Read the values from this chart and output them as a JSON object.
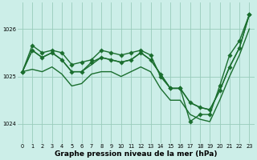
{
  "xlabel": "Graphe pression niveau de la mer (hPa)",
  "bg_color": "#cceee8",
  "grid_color": "#99ccbb",
  "line_color": "#1a6e2e",
  "xlim": [
    -0.5,
    23.5
  ],
  "ylim": [
    1023.6,
    1026.55
  ],
  "yticks": [
    1024,
    1025,
    1026
  ],
  "x_ticks": [
    0,
    1,
    2,
    3,
    4,
    5,
    6,
    7,
    8,
    9,
    10,
    11,
    12,
    13,
    14,
    15,
    16,
    17,
    18,
    19,
    20,
    21,
    22,
    23
  ],
  "series": [
    {
      "y": [
        1025.1,
        1025.65,
        1025.5,
        1025.55,
        1025.5,
        1025.25,
        1025.3,
        1025.35,
        1025.55,
        1025.5,
        1025.45,
        1025.5,
        1025.55,
        1025.45,
        1025.0,
        1024.75,
        1024.75,
        1024.05,
        1024.2,
        1024.2,
        1024.8,
        1025.45,
        1025.75,
        1026.3
      ],
      "marker": true,
      "lw": 1.0,
      "ls": "-"
    },
    {
      "y": [
        1025.1,
        1025.55,
        1025.4,
        1025.5,
        1025.35,
        1025.1,
        1025.1,
        1025.3,
        1025.4,
        1025.35,
        1025.3,
        1025.35,
        1025.5,
        1025.35,
        1025.05,
        1024.75,
        1024.75,
        1024.45,
        1024.35,
        1024.3,
        1024.7,
        1025.2,
        1025.6,
        1026.3
      ],
      "marker": true,
      "lw": 1.0,
      "ls": "-"
    },
    {
      "y": [
        1025.1,
        1025.55,
        1025.4,
        1025.5,
        1025.35,
        1025.1,
        1025.1,
        1025.25,
        1025.4,
        1025.35,
        1025.3,
        1025.35,
        1025.5,
        1025.35,
        1025.05,
        1024.75,
        1024.75,
        1024.45,
        1024.35,
        1024.3,
        1024.7,
        1025.2,
        1025.6,
        1026.3
      ],
      "marker": false,
      "lw": 1.0,
      "ls": "-"
    },
    {
      "y": [
        1025.1,
        1025.15,
        1025.1,
        1025.2,
        1025.05,
        1024.8,
        1024.85,
        1025.05,
        1025.1,
        1025.1,
        1025.0,
        1025.1,
        1025.2,
        1025.1,
        1024.75,
        1024.5,
        1024.5,
        1024.2,
        1024.1,
        1024.05,
        1024.5,
        1025.0,
        1025.45,
        1026.0
      ],
      "marker": false,
      "lw": 1.0,
      "ls": "-"
    }
  ],
  "marker_size": 2.8,
  "tick_fontsize": 4.8,
  "label_fontsize": 6.5
}
